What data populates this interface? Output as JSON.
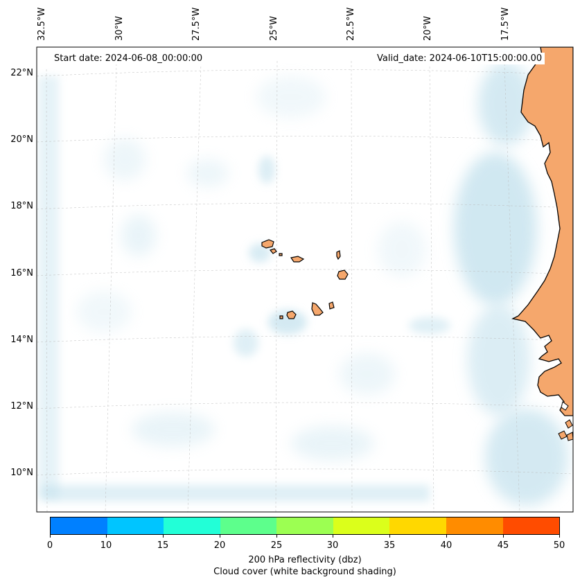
{
  "map": {
    "start_date": "Start date: 2024-06-08_00:00:00",
    "valid_date": "Valid_date: 2024-06-10T15:00:00.00",
    "lon_labels": [
      "32.5°W",
      "30°W",
      "27.5°W",
      "25°W",
      "22.5°W",
      "20°W",
      "17.5°W"
    ],
    "lat_labels": [
      "22°N",
      "20°N",
      "18°N",
      "16°N",
      "14°N",
      "12°N",
      "10°N"
    ],
    "land_color": "#f5a76c",
    "cloud_color": "#b8dcea"
  },
  "colorbar": {
    "ticks": [
      "0",
      "10",
      "15",
      "20",
      "25",
      "30",
      "35",
      "40",
      "45",
      "50"
    ],
    "colors": [
      "#0080ff",
      "#00c5ff",
      "#22ffd7",
      "#5dff8c",
      "#9cff52",
      "#dbff1b",
      "#ffd800",
      "#ff8c00",
      "#ff4c00"
    ],
    "label": "200 hPa reflectivity (dbz)",
    "sublabel": "Cloud cover (white background shading)"
  }
}
